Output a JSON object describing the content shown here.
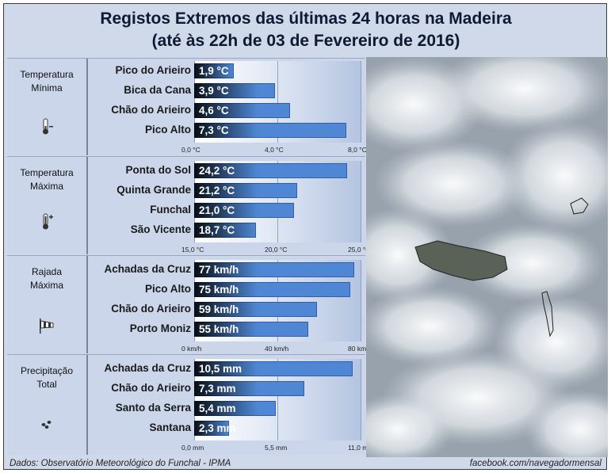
{
  "title": {
    "line1": "Registos Extremos das últimas 24 horas na Madeira",
    "line2": "(até às 22h de 03 de Fevereiro de 2016)"
  },
  "footer": {
    "source": "Dados:  Observatório Meteorológico do Funchal - IPMA",
    "credit": "facebook.com/navegadormensal"
  },
  "colors": {
    "bar": "#4f87d4",
    "background": "#cfd9ea"
  },
  "chart_data": [
    {
      "type": "bar",
      "orientation": "horizontal",
      "panel_label": [
        "Temperatura",
        "Mínima"
      ],
      "icon": "thermometer-low-icon",
      "categories": [
        "Pico do Arieiro",
        "Bica da Cana",
        "Chão do Arieiro",
        "Pico Alto"
      ],
      "values": [
        1.9,
        3.9,
        4.6,
        7.3
      ],
      "value_labels": [
        "1,9 °C",
        "3,9 °C",
        "4,6 °C",
        "7,3 °C"
      ],
      "xlim": [
        0,
        8
      ],
      "ticks": [
        {
          "v": 0,
          "label": "0,0 °C"
        },
        {
          "v": 4,
          "label": "4,0 °C"
        },
        {
          "v": 8,
          "label": "8,0 °C"
        }
      ]
    },
    {
      "type": "bar",
      "orientation": "horizontal",
      "panel_label": [
        "Temperatura",
        "Máxima"
      ],
      "icon": "thermometer-high-icon",
      "categories": [
        "Ponta do Sol",
        "Quinta Grande",
        "Funchal",
        "São Vicente"
      ],
      "values": [
        24.2,
        21.2,
        21.0,
        18.7
      ],
      "value_labels": [
        "24,2 °C",
        "21,2 °C",
        "21,0 °C",
        "18,7 °C"
      ],
      "xlim": [
        15,
        25
      ],
      "ticks": [
        {
          "v": 15,
          "label": "15,0 °C"
        },
        {
          "v": 20,
          "label": "20,0 °C"
        },
        {
          "v": 25,
          "label": "25,0 °C"
        }
      ]
    },
    {
      "type": "bar",
      "orientation": "horizontal",
      "panel_label": [
        "Rajada",
        "Máxima"
      ],
      "icon": "windsock-icon",
      "categories": [
        "Achadas da Cruz",
        "Pico Alto",
        "Chão do Arieiro",
        "Porto Moniz"
      ],
      "values": [
        77,
        75,
        59,
        55
      ],
      "value_labels": [
        "77 km/h",
        "75 km/h",
        "59 km/h",
        "55 km/h"
      ],
      "xlim": [
        0,
        80
      ],
      "ticks": [
        {
          "v": 0,
          "label": "0 km/h"
        },
        {
          "v": 40,
          "label": "40 km/h"
        },
        {
          "v": 80,
          "label": "80 km/h"
        }
      ]
    },
    {
      "type": "bar",
      "orientation": "horizontal",
      "panel_label": [
        "Precipitação",
        "Total"
      ],
      "icon": "raindrops-icon",
      "categories": [
        "Achadas da Cruz",
        "Chão do Arieiro",
        "Santo da Serra",
        "Santana"
      ],
      "values": [
        10.5,
        7.3,
        5.4,
        2.3
      ],
      "value_labels": [
        "10,5 mm",
        "7,3 mm",
        "5,4 mm",
        "2,3 mm"
      ],
      "xlim": [
        0,
        11
      ],
      "ticks": [
        {
          "v": 0,
          "label": "0,0 mm"
        },
        {
          "v": 5.5,
          "label": "5,5 mm"
        },
        {
          "v": 11,
          "label": "11,0 mm"
        }
      ]
    }
  ]
}
